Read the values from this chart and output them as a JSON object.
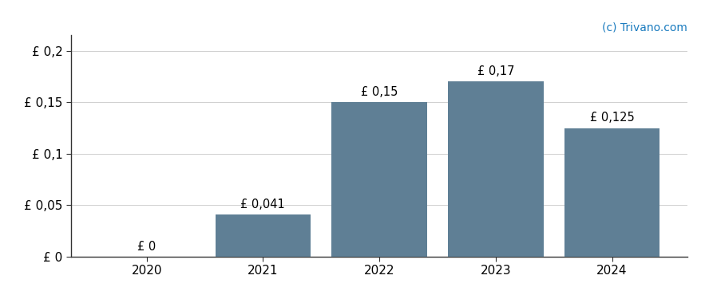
{
  "categories": [
    "2020",
    "2021",
    "2022",
    "2023",
    "2024"
  ],
  "values": [
    0,
    0.041,
    0.15,
    0.17,
    0.125
  ],
  "bar_labels": [
    "£ 0",
    "£ 0,041",
    "£ 0,15",
    "£ 0,17",
    "£ 0,125"
  ],
  "bar_color": "#5f7f95",
  "ytick_labels": [
    "£ 0",
    "£ 0,05",
    "£ 0,1",
    "£ 0,15",
    "£ 0,2"
  ],
  "ytick_values": [
    0,
    0.05,
    0.1,
    0.15,
    0.2
  ],
  "ylim": [
    0,
    0.215
  ],
  "background_color": "#ffffff",
  "grid_color": "#d0d0d0",
  "watermark": "(c) Trivano.com",
  "watermark_color": "#1a7bbf",
  "label_fontsize": 10.5,
  "tick_fontsize": 11,
  "watermark_fontsize": 10,
  "bar_width": 0.82
}
